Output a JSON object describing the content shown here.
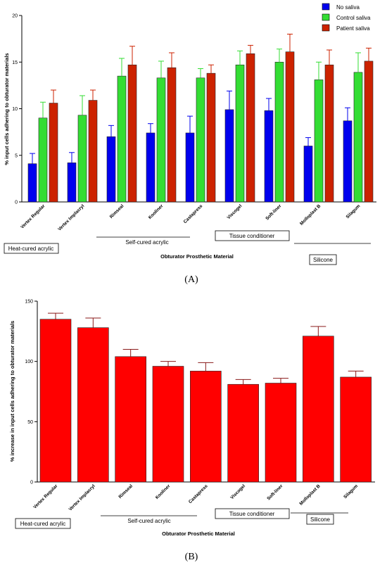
{
  "chart_data": [
    {
      "type": "bar",
      "panel_label": "(A)",
      "categories": [
        "Vertex Regular",
        "Vertex Implacryl",
        "Rimseal",
        "Kooliner",
        "Castapress",
        "Viscogel",
        "Soft-liner",
        "Molloplast B",
        "Silagum"
      ],
      "series": [
        {
          "name": "No saliva",
          "color": "#0000ee",
          "values": [
            4.1,
            4.2,
            7.0,
            7.4,
            7.4,
            9.9,
            9.8,
            6.0,
            8.7
          ],
          "errors": [
            1.1,
            1.1,
            1.2,
            1.0,
            1.8,
            2.0,
            1.3,
            0.9,
            1.4
          ]
        },
        {
          "name": "Control saliva",
          "color": "#33dd33",
          "values": [
            9.0,
            9.3,
            13.5,
            13.3,
            13.3,
            14.7,
            15.0,
            13.1,
            13.9
          ],
          "errors": [
            1.7,
            2.1,
            1.9,
            1.8,
            1.0,
            1.5,
            1.4,
            1.9,
            2.1
          ]
        },
        {
          "name": "Patient saliva",
          "color": "#cc2200",
          "values": [
            10.6,
            10.9,
            14.7,
            14.4,
            13.8,
            15.9,
            16.1,
            14.7,
            15.1
          ],
          "errors": [
            1.4,
            1.1,
            2.0,
            1.6,
            0.9,
            0.9,
            1.9,
            1.6,
            1.4
          ]
        }
      ],
      "ylabel": "% input cells adhering to obturator materials",
      "xlabel": "Obturator Prosthetic Material",
      "ylim": [
        0,
        20
      ],
      "yticks": [
        0,
        5,
        10,
        15,
        20
      ],
      "legend_position": "top-right",
      "groups": [
        "Heat-cured acrylic",
        "Self-cured acrylic",
        "Tissue conditioner",
        "Silicone"
      ]
    },
    {
      "type": "bar",
      "panel_label": "(B)",
      "categories": [
        "Vertex Regular",
        "Vertex Implacryl",
        "Rimseal",
        "Kooliner",
        "Castapress",
        "Viscogel",
        "Soft-liner",
        "Molloplast B",
        "Silagum"
      ],
      "series": [
        {
          "name": "",
          "color": "#ff0000",
          "values": [
            135,
            128,
            104,
            96,
            92,
            81,
            82,
            121,
            87
          ],
          "errors": [
            5,
            8,
            6,
            4,
            7,
            4,
            4,
            8,
            5
          ]
        }
      ],
      "ylabel": "% increase in input cells adhering to obturator materials",
      "xlabel": "Obturator Prosthetic Material",
      "ylim": [
        0,
        150
      ],
      "yticks": [
        0,
        50,
        100,
        150
      ],
      "groups": [
        "Heat-cured acrylic",
        "Self-cured acrylic",
        "Tissue conditioner",
        "Silicone"
      ]
    }
  ]
}
